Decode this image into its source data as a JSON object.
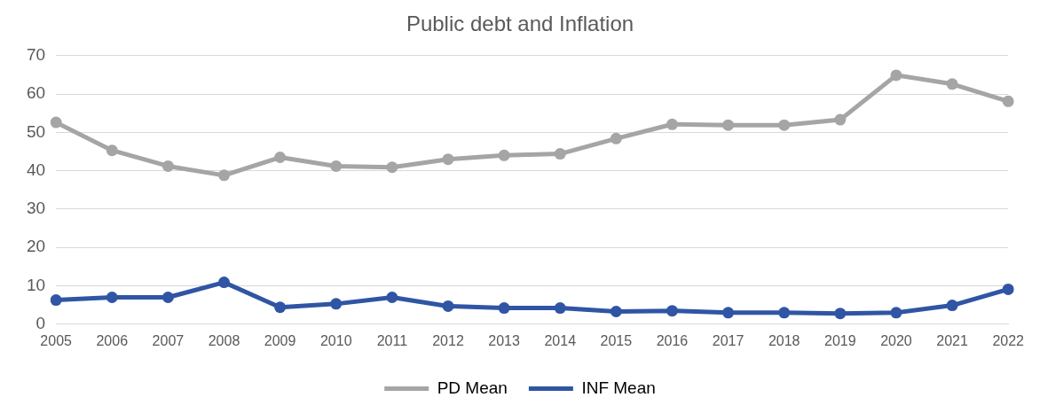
{
  "chart_data": {
    "type": "line",
    "title": "Public debt and Inflation",
    "categories": [
      "2005",
      "2006",
      "2007",
      "2008",
      "2009",
      "2010",
      "2011",
      "2012",
      "2013",
      "2014",
      "2015",
      "2016",
      "2017",
      "2018",
      "2019",
      "2020",
      "2021",
      "2022"
    ],
    "series": [
      {
        "name": "PD Mean",
        "color": "#a5a5a5",
        "values": [
          52.6,
          45.3,
          41.2,
          38.8,
          43.5,
          41.2,
          40.9,
          43.0,
          44.0,
          44.4,
          48.4,
          52.1,
          51.9,
          51.9,
          53.3,
          64.9,
          62.6,
          58.1
        ]
      },
      {
        "name": "INF Mean",
        "color": "#2f55a4",
        "values": [
          6.3,
          7.0,
          7.0,
          10.9,
          4.4,
          5.3,
          7.0,
          4.7,
          4.2,
          4.2,
          3.3,
          3.5,
          3.0,
          3.0,
          2.8,
          3.0,
          4.9,
          9.1
        ]
      }
    ],
    "ylim": [
      0,
      70
    ],
    "yticks": [
      0,
      10,
      20,
      30,
      40,
      50,
      60,
      70
    ],
    "grid": "y",
    "legend": "bottom",
    "marker": "circle",
    "line_style": "solid"
  }
}
